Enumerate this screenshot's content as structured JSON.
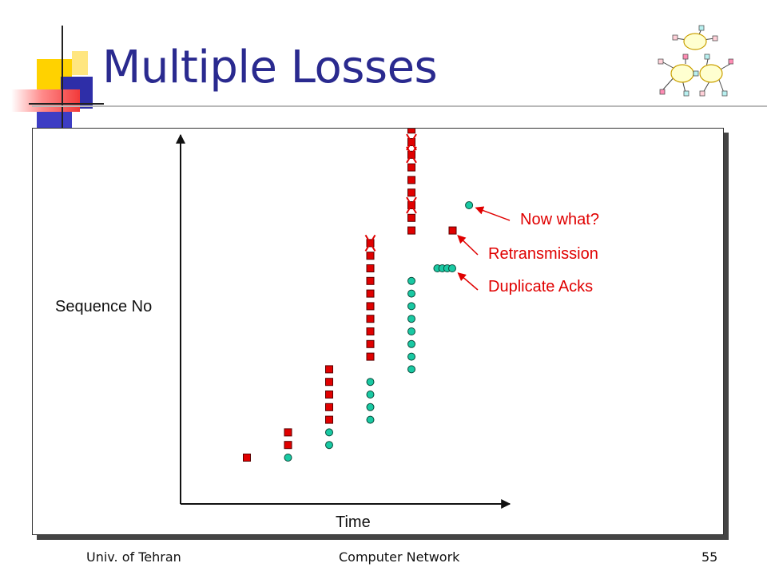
{
  "slide": {
    "title": "Multiple Losses",
    "footer_left": "Univ. of Tehran",
    "footer_center": "Computer Network",
    "page_number": "55"
  },
  "colors": {
    "title": "#2a2a8f",
    "packet_fill": "#e00000",
    "ack_fill": "#19c9a3",
    "annotation": "#e00000",
    "axis": "#111111"
  },
  "chart_data": {
    "type": "scatter",
    "xlabel": "Time",
    "ylabel": "Sequence No",
    "series": [
      {
        "marker": "square",
        "points": [
          [
            1,
            1
          ],
          [
            2,
            2
          ],
          [
            2,
            3
          ],
          [
            3,
            4
          ],
          [
            3,
            5
          ],
          [
            3,
            6
          ],
          [
            3,
            7
          ],
          [
            3,
            8
          ],
          [
            4,
            9
          ],
          [
            4,
            10
          ],
          [
            4,
            11
          ],
          [
            4,
            12
          ],
          [
            4,
            13
          ],
          [
            4,
            14
          ],
          [
            4,
            15
          ],
          [
            4,
            16
          ],
          [
            4,
            17
          ],
          [
            4,
            18
          ],
          [
            5,
            19
          ],
          [
            5,
            20
          ],
          [
            5,
            21
          ],
          [
            5,
            22
          ],
          [
            5,
            23
          ],
          [
            5,
            24
          ],
          [
            5,
            25
          ],
          [
            5,
            26
          ],
          [
            5,
            27
          ],
          [
            5,
            28
          ],
          [
            6,
            19
          ]
        ]
      },
      {
        "marker": "circle",
        "points": [
          [
            2,
            1
          ],
          [
            3,
            2
          ],
          [
            3,
            3
          ],
          [
            4,
            4
          ],
          [
            4,
            5
          ],
          [
            4,
            6
          ],
          [
            4,
            7
          ],
          [
            5,
            8
          ],
          [
            5,
            9
          ],
          [
            5,
            10
          ],
          [
            5,
            11
          ],
          [
            5,
            12
          ],
          [
            5,
            13
          ],
          [
            5,
            14
          ],
          [
            5,
            15
          ],
          [
            5.63,
            16
          ],
          [
            5.75,
            16
          ],
          [
            5.87,
            16
          ],
          [
            5.99,
            16
          ],
          [
            6.4,
            21
          ]
        ]
      }
    ],
    "lost_packets": [
      [
        4,
        18
      ],
      [
        5,
        21
      ],
      [
        5,
        25
      ],
      [
        5,
        26
      ]
    ],
    "annotations": [
      {
        "text": "Now what?",
        "points_to": [
          6.4,
          21
        ]
      },
      {
        "text": "Retransmission",
        "points_to": [
          6,
          19
        ]
      },
      {
        "text": "Duplicate Acks",
        "points_to": [
          6,
          16
        ]
      }
    ]
  }
}
